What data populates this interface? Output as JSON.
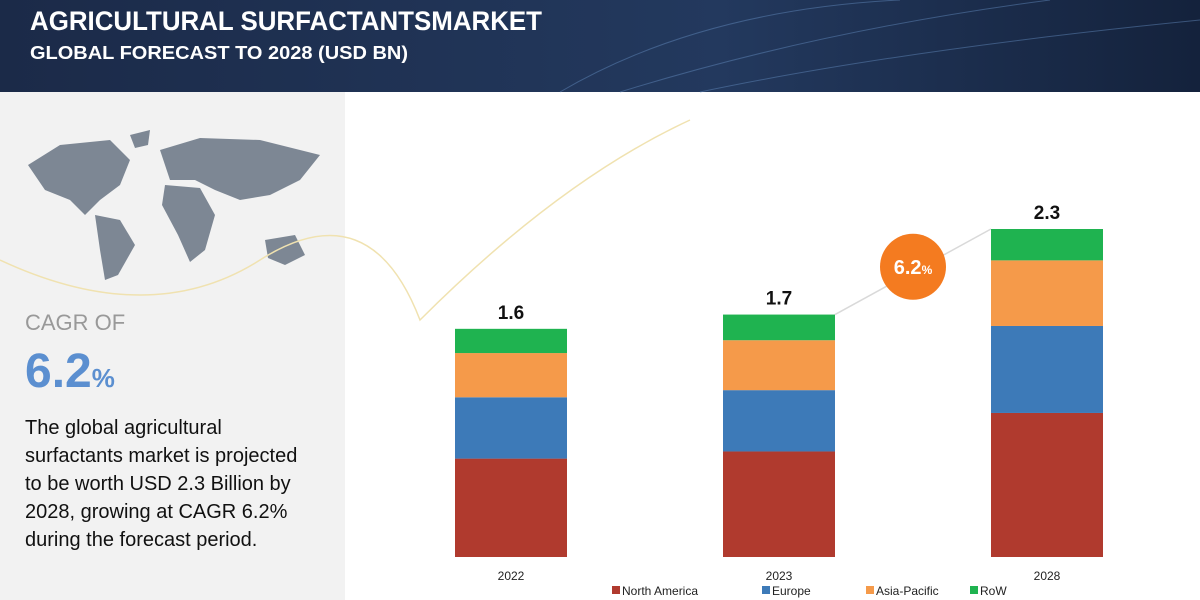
{
  "header": {
    "title": "AGRICULTURAL SURFACTANTSMARKET",
    "subtitle": "GLOBAL FORECAST TO 2028 (USD BN)"
  },
  "sidebar": {
    "cagr_label": "CAGR OF",
    "cagr_value": "6.2",
    "cagr_unit": "%",
    "description": "The global agricultural surfactants market is projected to be worth USD 2.3 Billion by 2028, growing at CAGR 6.2% during the forecast period."
  },
  "chart_data": {
    "type": "stacked_bar",
    "categories": [
      "2022",
      "2023",
      "2028"
    ],
    "series": [
      {
        "name": "North America",
        "color": "#b03a2e",
        "values": [
          0.69,
          0.74,
          1.01
        ]
      },
      {
        "name": "Europe",
        "color": "#3d7ab8",
        "values": [
          0.43,
          0.43,
          0.61
        ]
      },
      {
        "name": "Asia-Pacific",
        "color": "#f59a4a",
        "values": [
          0.31,
          0.35,
          0.46
        ]
      },
      {
        "name": "RoW",
        "color": "#1fb350",
        "values": [
          0.17,
          0.18,
          0.22
        ]
      }
    ],
    "totals": [
      1.6,
      1.7,
      2.3
    ],
    "annotation": {
      "value": "6.2",
      "unit": "%",
      "color": "#f47b20"
    },
    "legend": "bottom"
  }
}
